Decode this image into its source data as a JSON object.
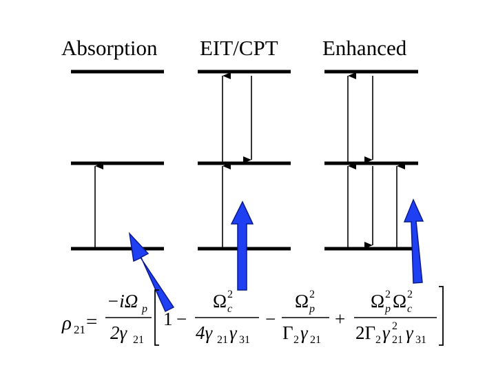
{
  "panels": [
    {
      "label": "Absorption"
    },
    {
      "label": "EIT/CPT"
    },
    {
      "label": "Enhanced"
    }
  ],
  "colors": {
    "arrow_fill": "#1f3ff2",
    "arrow_stroke": "#0a1a8c",
    "level_color": "#000000"
  },
  "equation": {
    "lhs": "ρ",
    "lhs_sub": "21",
    "equals": "=",
    "pre_num": "−iΩ",
    "pre_num_sub": "p",
    "pre_den": "2γ",
    "pre_den_sub": "21",
    "one": "1",
    "minus": "−",
    "plus": "+",
    "t1_num": "Ω",
    "t1_num_sup": "2",
    "t1_num_sub": "c",
    "t1_den_a": "4γ",
    "t1_den_a_sub": "21",
    "t1_den_b": "γ",
    "t1_den_b_sub": "31",
    "t2_num": "Ω",
    "t2_num_sup": "2",
    "t2_num_sub": "p",
    "t2_den_a": "Γ",
    "t2_den_a_sub": "2",
    "t2_den_b": "γ",
    "t2_den_b_sub": "21",
    "t3_num_a": "Ω",
    "t3_num_a_sup": "2",
    "t3_num_a_sub": "p",
    "t3_num_b": "Ω",
    "t3_num_b_sup": "2",
    "t3_num_b_sub": "c",
    "t3_den_a": "2Γ",
    "t3_den_a_sub": "2",
    "t3_den_b": "γ",
    "t3_den_b_sup": "2",
    "t3_den_b_sub": "21",
    "t3_den_c": "γ",
    "t3_den_c_sub": "31"
  }
}
